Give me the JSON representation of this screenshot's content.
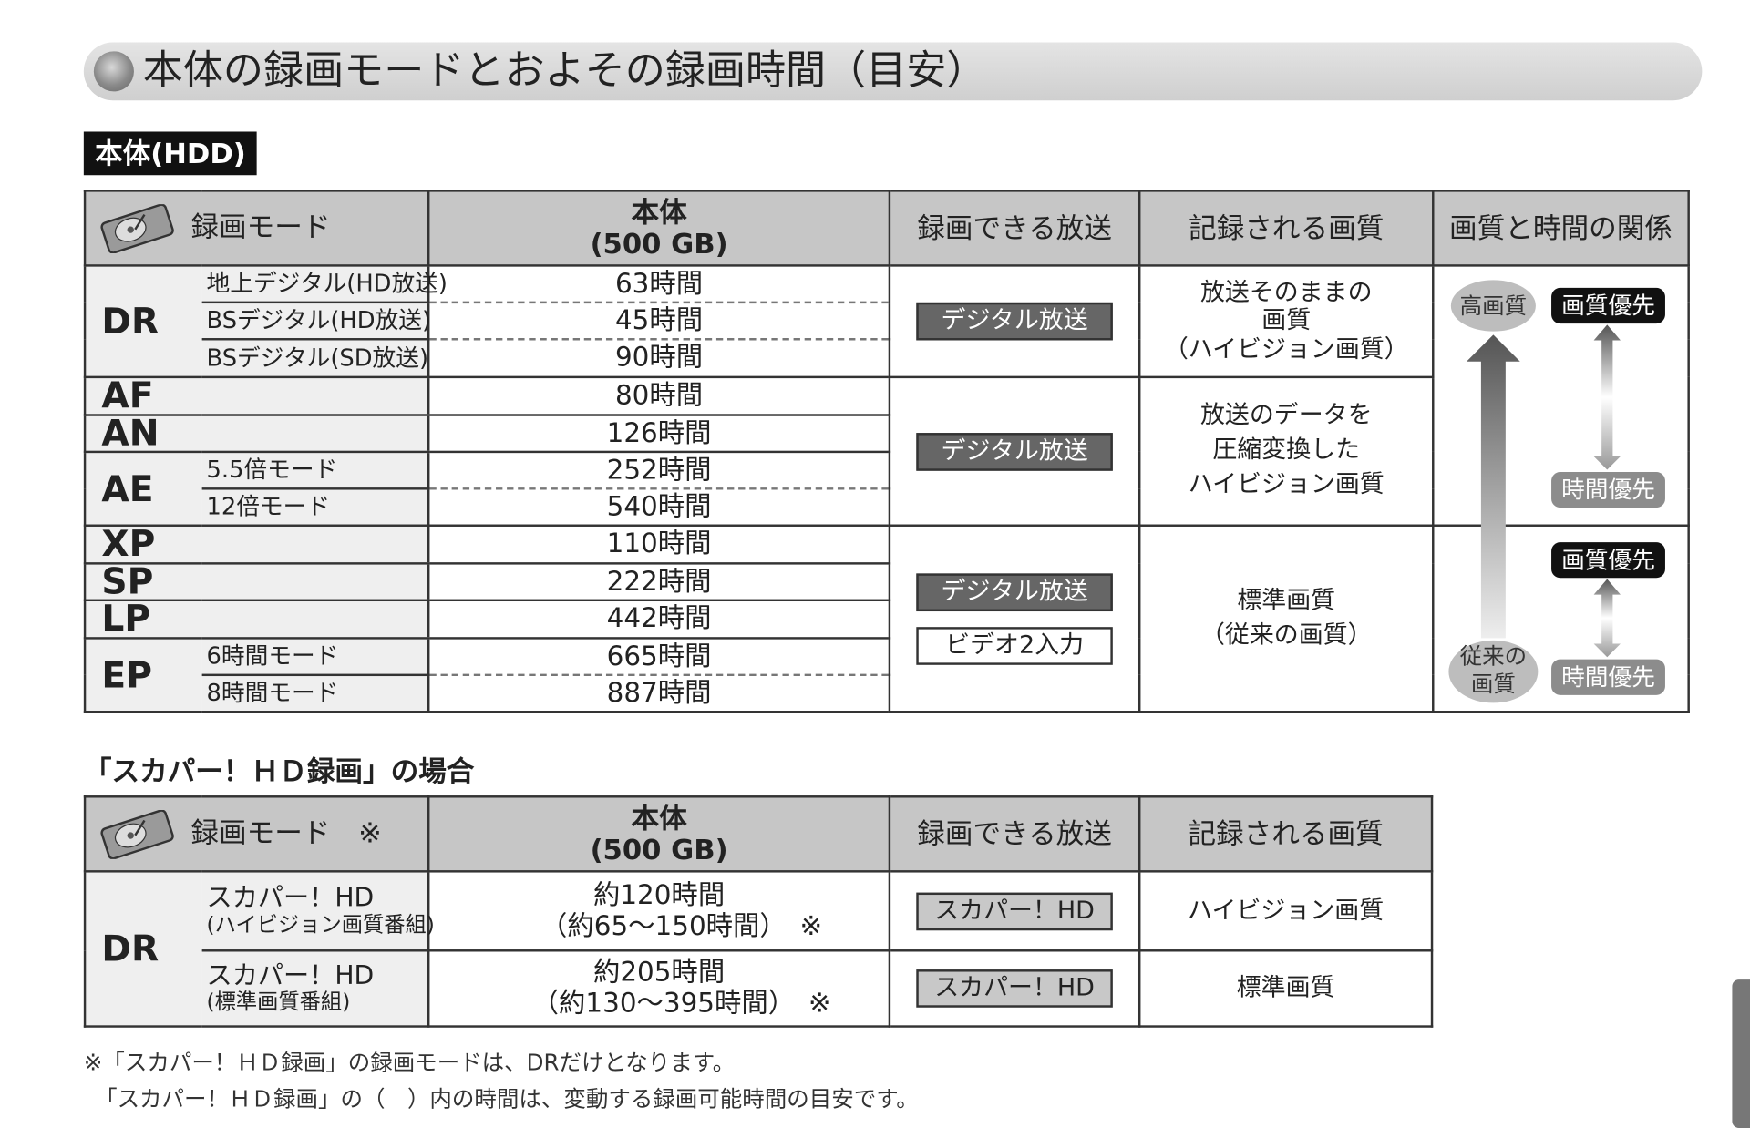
{
  "title": "本体の録画モードとおよその録画時間（目安）",
  "section_label": "本体(HDD)",
  "table1": {
    "headers": {
      "mode": "録画モード",
      "capacity": "本体\n(500 GB)",
      "broadcast": "録画できる放送",
      "quality": "記録される画質",
      "relation": "画質と時間の関係"
    },
    "dr": {
      "mode": "DR",
      "rows": [
        {
          "sub": "地上デジタル(HD放送)",
          "time": "63時間"
        },
        {
          "sub": "BSデジタル(HD放送)",
          "time": "45時間"
        },
        {
          "sub": "BSデジタル(SD放送)",
          "time": "90時間"
        }
      ],
      "broadcast": "デジタル放送",
      "quality": "放送そのままの\n画質\n（ハイビジョン画質）"
    },
    "hd_group": {
      "af": {
        "mode": "AF",
        "time": "80時間"
      },
      "an": {
        "mode": "AN",
        "time": "126時間"
      },
      "ae": {
        "mode": "AE",
        "rows": [
          {
            "sub": "5.5倍モード",
            "time": "252時間"
          },
          {
            "sub": "12倍モード",
            "time": "540時間"
          }
        ]
      },
      "broadcast": "デジタル放送",
      "quality": "放送のデータを\n圧縮変換した\nハイビジョン画質"
    },
    "sd_group": {
      "xp": {
        "mode": "XP",
        "time": "110時間"
      },
      "sp": {
        "mode": "SP",
        "time": "222時間"
      },
      "lp": {
        "mode": "LP",
        "time": "442時間"
      },
      "ep": {
        "mode": "EP",
        "rows": [
          {
            "sub": "6時間モード",
            "time": "665時間"
          },
          {
            "sub": "8時間モード",
            "time": "887時間"
          }
        ]
      },
      "broadcast": [
        "デジタル放送",
        "ビデオ2入力"
      ],
      "quality": "標準画質\n（従来の画質）"
    },
    "relation": {
      "high": "高画質",
      "conventional": "従来の\n画質",
      "quality_priority": "画質優先",
      "time_priority": "時間優先"
    }
  },
  "subheading": "「スカパー！ＨＤ録画」の場合",
  "table2": {
    "headers": {
      "mode": "録画モード　※",
      "capacity": "本体\n(500 GB)",
      "broadcast": "録画できる放送",
      "quality": "記録される画質"
    },
    "mode": "DR",
    "rows": [
      {
        "sub1": "スカパー！HD",
        "sub2": "(ハイビジョン画質番組)",
        "time1": "約120時間",
        "time2": "（約65〜150時間）　※",
        "broadcast": "スカパー！HD",
        "quality": "ハイビジョン画質"
      },
      {
        "sub1": "スカパー！HD",
        "sub2": "(標準画質番組)",
        "time1": "約205時間",
        "time2": "（約130〜395時間）　※",
        "broadcast": "スカパー！HD",
        "quality": "標準画質"
      }
    ]
  },
  "notes": [
    "※「スカパー！ＨＤ録画」の録画モードは、DRだけとなります。",
    "　「スカパー！ＨＤ録画」の（　）内の時間は、変動する録画可能時間の目安です。"
  ],
  "colors": {
    "header_bg": "#c6c6c6",
    "badge_dark": "#666666",
    "title_bar": "#d8d8d8"
  }
}
